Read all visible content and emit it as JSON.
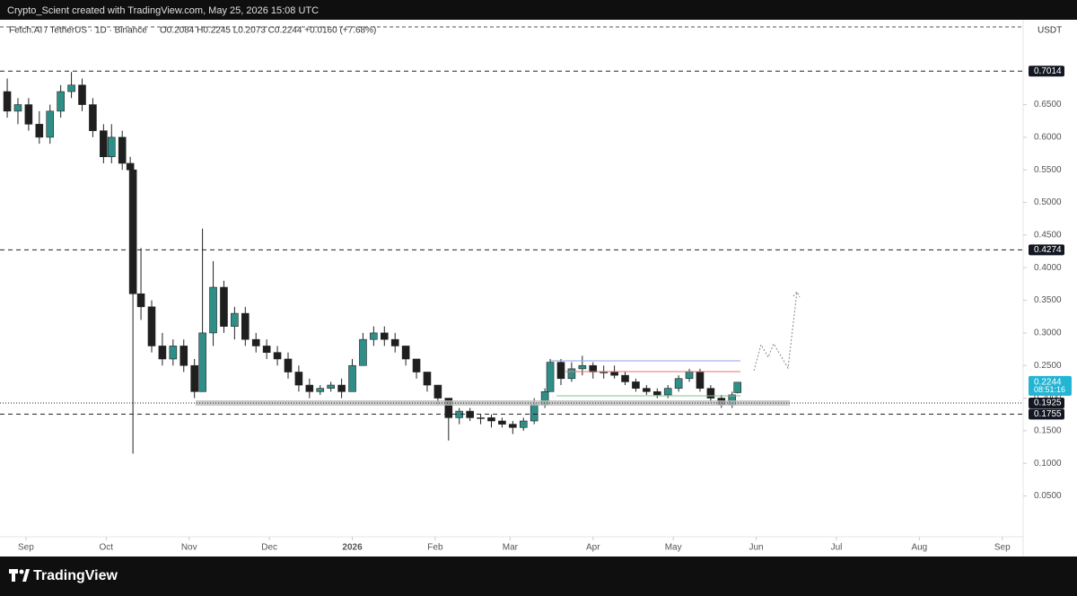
{
  "header": {
    "attribution": "Crypto_Scient created with TradingView.com, May 25, 2026 15:08 UTC"
  },
  "footer": {
    "brand": "TradingView"
  },
  "chart_data": {
    "type": "candlestick",
    "title": "Fetch.AI / TetherUS · 1D · Binance",
    "ohlc_legend": "O0.2084  H0.2245  L0.2073  C0.2244  +0.0160 (+7.68%)",
    "currency": "USDT",
    "up_color": "#2f8f88",
    "down_color": "#1f1f1f",
    "x": [
      -7,
      -3,
      1,
      5,
      9,
      13,
      17,
      21,
      25,
      29,
      32,
      36,
      39,
      40,
      43,
      47,
      51,
      55,
      59,
      63,
      66,
      70,
      74,
      78,
      82,
      86,
      90,
      94,
      98,
      102,
      106,
      110,
      114,
      118,
      122,
      126,
      130,
      134,
      138,
      142,
      146,
      150,
      154,
      158,
      162,
      166,
      170,
      174,
      178,
      182,
      186,
      190,
      194,
      196,
      200,
      204,
      208,
      212,
      216,
      220,
      224,
      228,
      232,
      236,
      240,
      244,
      248,
      252,
      256,
      260,
      264,
      266
    ],
    "open": [
      0.67,
      0.64,
      0.65,
      0.62,
      0.6,
      0.64,
      0.67,
      0.68,
      0.65,
      0.61,
      0.57,
      0.6,
      0.56,
      0.55,
      0.36,
      0.34,
      0.28,
      0.26,
      0.28,
      0.25,
      0.21,
      0.3,
      0.37,
      0.31,
      0.33,
      0.29,
      0.28,
      0.27,
      0.26,
      0.24,
      0.22,
      0.21,
      0.215,
      0.22,
      0.21,
      0.25,
      0.29,
      0.3,
      0.29,
      0.28,
      0.26,
      0.24,
      0.22,
      0.2,
      0.17,
      0.18,
      0.17,
      0.17,
      0.165,
      0.16,
      0.155,
      0.165,
      0.19,
      0.21,
      0.255,
      0.23,
      0.245,
      0.25,
      0.24,
      0.24,
      0.235,
      0.225,
      0.215,
      0.21,
      0.205,
      0.215,
      0.23,
      0.24,
      0.215,
      0.2,
      0.19,
      0.2084
    ],
    "high": [
      0.69,
      0.66,
      0.66,
      0.64,
      0.65,
      0.68,
      0.7,
      0.69,
      0.66,
      0.62,
      0.62,
      0.61,
      0.57,
      0.55,
      0.43,
      0.35,
      0.3,
      0.29,
      0.29,
      0.26,
      0.46,
      0.41,
      0.38,
      0.34,
      0.34,
      0.3,
      0.29,
      0.28,
      0.27,
      0.25,
      0.23,
      0.22,
      0.225,
      0.23,
      0.26,
      0.3,
      0.31,
      0.31,
      0.3,
      0.28,
      0.26,
      0.24,
      0.22,
      0.2,
      0.185,
      0.185,
      0.175,
      0.175,
      0.17,
      0.165,
      0.17,
      0.2,
      0.215,
      0.26,
      0.26,
      0.255,
      0.265,
      0.255,
      0.25,
      0.25,
      0.24,
      0.23,
      0.22,
      0.215,
      0.22,
      0.235,
      0.245,
      0.245,
      0.22,
      0.205,
      0.21,
      0.2245
    ],
    "low": [
      0.63,
      0.62,
      0.61,
      0.59,
      0.59,
      0.63,
      0.66,
      0.64,
      0.6,
      0.56,
      0.56,
      0.55,
      0.53,
      0.115,
      0.32,
      0.27,
      0.25,
      0.25,
      0.24,
      0.2,
      0.21,
      0.28,
      0.3,
      0.29,
      0.28,
      0.27,
      0.26,
      0.25,
      0.23,
      0.21,
      0.2,
      0.205,
      0.21,
      0.2,
      0.21,
      0.25,
      0.28,
      0.28,
      0.27,
      0.25,
      0.23,
      0.21,
      0.19,
      0.135,
      0.16,
      0.165,
      0.16,
      0.155,
      0.155,
      0.145,
      0.15,
      0.16,
      0.185,
      0.21,
      0.22,
      0.225,
      0.235,
      0.23,
      0.23,
      0.23,
      0.22,
      0.21,
      0.205,
      0.2,
      0.2,
      0.21,
      0.225,
      0.21,
      0.195,
      0.185,
      0.185,
      0.2073
    ],
    "close": [
      0.64,
      0.65,
      0.62,
      0.6,
      0.64,
      0.67,
      0.68,
      0.65,
      0.61,
      0.57,
      0.6,
      0.56,
      0.55,
      0.36,
      0.34,
      0.28,
      0.26,
      0.28,
      0.25,
      0.21,
      0.3,
      0.37,
      0.31,
      0.33,
      0.29,
      0.28,
      0.27,
      0.26,
      0.24,
      0.22,
      0.21,
      0.215,
      0.22,
      0.21,
      0.25,
      0.29,
      0.3,
      0.29,
      0.28,
      0.26,
      0.24,
      0.22,
      0.2,
      0.17,
      0.18,
      0.17,
      0.17,
      0.165,
      0.16,
      0.155,
      0.165,
      0.19,
      0.21,
      0.255,
      0.23,
      0.245,
      0.25,
      0.24,
      0.24,
      0.235,
      0.225,
      0.215,
      0.21,
      0.205,
      0.215,
      0.23,
      0.24,
      0.215,
      0.2,
      0.19,
      0.205,
      0.2244
    ],
    "xlim": [
      -9.7,
      372.8
    ],
    "xticks": [
      {
        "value": 0,
        "label": "Sep"
      },
      {
        "value": 30,
        "label": "Oct"
      },
      {
        "value": 61,
        "label": "Nov"
      },
      {
        "value": 91,
        "label": "Dec"
      },
      {
        "value": 122,
        "label": "2026"
      },
      {
        "value": 153,
        "label": "Feb"
      },
      {
        "value": 181,
        "label": "Mar"
      },
      {
        "value": 212,
        "label": "Apr"
      },
      {
        "value": 242,
        "label": "May"
      },
      {
        "value": 273,
        "label": "Jun"
      },
      {
        "value": 303,
        "label": "Jul"
      },
      {
        "value": 334,
        "label": "Aug"
      },
      {
        "value": 365,
        "label": "Sep"
      }
    ],
    "ylim": [
      0.015,
      0.765
    ],
    "yticks": [
      {
        "value": 0.05,
        "label": "0.0500"
      },
      {
        "value": 0.1,
        "label": "0.1000"
      },
      {
        "value": 0.15,
        "label": "0.1500"
      },
      {
        "value": 0.2,
        "label": "0.2000"
      },
      {
        "value": 0.25,
        "label": "0.2500"
      },
      {
        "value": 0.3,
        "label": "0.3000"
      },
      {
        "value": 0.35,
        "label": "0.3500"
      },
      {
        "value": 0.4,
        "label": "0.4000"
      },
      {
        "value": 0.45,
        "label": "0.4500"
      },
      {
        "value": 0.5,
        "label": "0.5000"
      },
      {
        "value": 0.55,
        "label": "0.5500"
      },
      {
        "value": 0.6,
        "label": "0.6000"
      },
      {
        "value": 0.65,
        "label": "0.6500"
      }
    ],
    "price_lines": [
      {
        "price": 0.7014,
        "style": "dashed"
      },
      {
        "price": 0.4274,
        "style": "dashed"
      },
      {
        "price": 0.1925,
        "style": "dotted"
      },
      {
        "price": 0.1755,
        "style": "dashed"
      }
    ],
    "current_price": {
      "price": 0.2244,
      "countdown": "08:51:16",
      "color": "#22b5d4"
    }
  }
}
